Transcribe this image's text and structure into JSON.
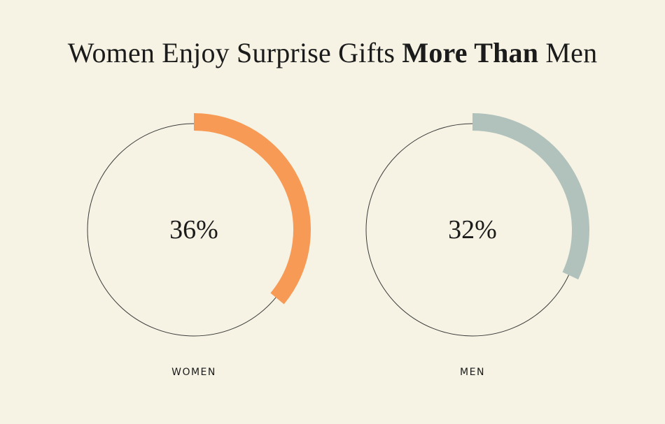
{
  "title": {
    "prefix": "Women Enjoy Surprise Gifts ",
    "emphasis": "More Than",
    "suffix": " Men"
  },
  "chart_data": {
    "type": "donut",
    "unit": "%",
    "colors": {
      "ring_outline": "#3a3a3a",
      "women": "#f79a55",
      "men": "#b1c2bc",
      "background": "#f6f3e4"
    },
    "series": [
      {
        "name": "WOMEN",
        "value": 36,
        "label": "36%",
        "color": "#f79a55"
      },
      {
        "name": "MEN",
        "value": 32,
        "label": "32%",
        "color": "#b1c2bc"
      }
    ]
  }
}
